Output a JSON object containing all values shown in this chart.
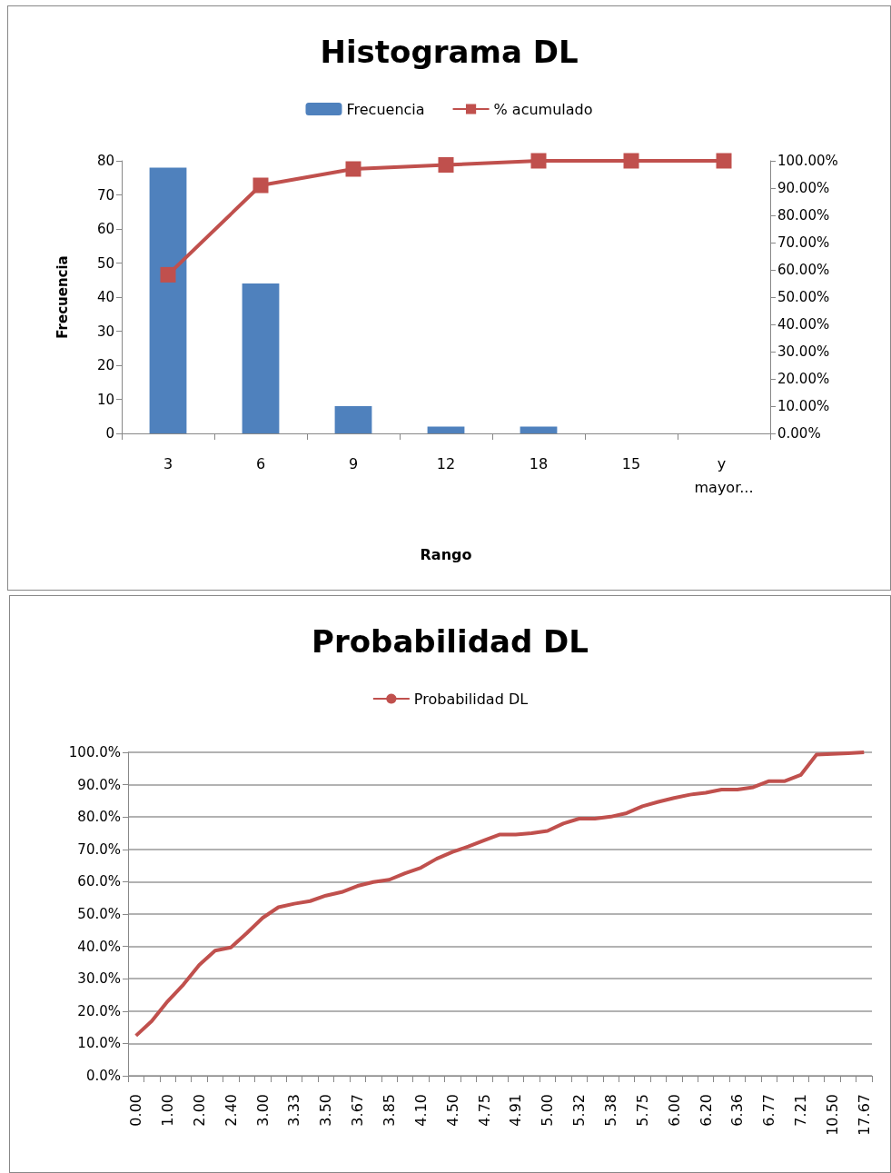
{
  "chart_data": [
    {
      "type": "bar",
      "title": "Histograma DL",
      "xlabel": "Rango",
      "ylabel": "Frecuencia",
      "categories": [
        "3",
        "6",
        "9",
        "12",
        "18",
        "15",
        "y mayor..."
      ],
      "series": [
        {
          "name": "Frecuencia",
          "color": "#4f81bd",
          "values": [
            78,
            44,
            8,
            2,
            2,
            0,
            0
          ]
        },
        {
          "name": "% acumulado",
          "type": "line",
          "axis": "y2",
          "color": "#c0504d",
          "values": [
            58.2,
            91.0,
            97.0,
            98.5,
            100,
            100,
            100
          ]
        }
      ],
      "ylim": [
        0,
        80
      ],
      "yticks": [
        0,
        10,
        20,
        30,
        40,
        50,
        60,
        70,
        80
      ],
      "y2lim": [
        0,
        100
      ],
      "y2ticks": [
        {
          "value": 0,
          "label": "0.00%"
        },
        {
          "value": 10,
          "label": "10.00%"
        },
        {
          "value": 20,
          "label": "20.00%"
        },
        {
          "value": 30,
          "label": "30.00%"
        },
        {
          "value": 40,
          "label": "40.00%"
        },
        {
          "value": 50,
          "label": "50.00%"
        },
        {
          "value": 60,
          "label": "60.00%"
        },
        {
          "value": 70,
          "label": "70.00%"
        },
        {
          "value": 80,
          "label": "80.00%"
        },
        {
          "value": 90,
          "label": "90.00%"
        },
        {
          "value": 100,
          "label": "100.00%"
        }
      ],
      "grid": false,
      "legend": "top",
      "marker": "square"
    },
    {
      "type": "line",
      "title": "Probabilidad DL",
      "categories": [
        "0.00",
        null,
        "1.00",
        null,
        "2.00",
        null,
        "2.40",
        null,
        "3.00",
        null,
        "3.33",
        null,
        "3.50",
        null,
        "3.67",
        null,
        "3.85",
        null,
        "4.10",
        null,
        "4.50",
        null,
        "4.75",
        null,
        "4.91",
        null,
        "5.00",
        null,
        "5.32",
        null,
        "5.38",
        null,
        "5.75",
        null,
        "6.00",
        null,
        "6.20",
        null,
        "6.36",
        null,
        "6.77",
        null,
        "7.21",
        null,
        "10.50",
        null,
        "17.67"
      ],
      "series": [
        {
          "name": "Probabilidad DL",
          "color": "#c0504d",
          "values": [
            12.4,
            16.9,
            23.0,
            28.2,
            34.3,
            38.7,
            39.7,
            44.1,
            48.8,
            52.1,
            53.2,
            54.0,
            55.7,
            56.8,
            58.7,
            59.9,
            60.6,
            62.6,
            64.3,
            67.1,
            69.2,
            70.9,
            72.8,
            74.6,
            74.6,
            75.0,
            75.7,
            78.0,
            79.5,
            79.5,
            80.1,
            81.2,
            83.3,
            84.7,
            85.9,
            86.9,
            87.5,
            88.5,
            88.5,
            89.2,
            91.1,
            91.1,
            93.0,
            99.3,
            99.5,
            99.7,
            100.0
          ]
        }
      ],
      "ylim": [
        0,
        100
      ],
      "yticks": [
        {
          "value": 0,
          "label": "0.0%"
        },
        {
          "value": 10,
          "label": "10.0%"
        },
        {
          "value": 20,
          "label": "20.0%"
        },
        {
          "value": 30,
          "label": "30.0%"
        },
        {
          "value": 40,
          "label": "40.0%"
        },
        {
          "value": 50,
          "label": "50.0%"
        },
        {
          "value": 60,
          "label": "60.0%"
        },
        {
          "value": 70,
          "label": "70.0%"
        },
        {
          "value": 80,
          "label": "80.0%"
        },
        {
          "value": 90,
          "label": "90.0%"
        },
        {
          "value": 100,
          "label": "100.0%"
        }
      ],
      "grid": "y",
      "legend": "top",
      "marker": "none"
    }
  ]
}
